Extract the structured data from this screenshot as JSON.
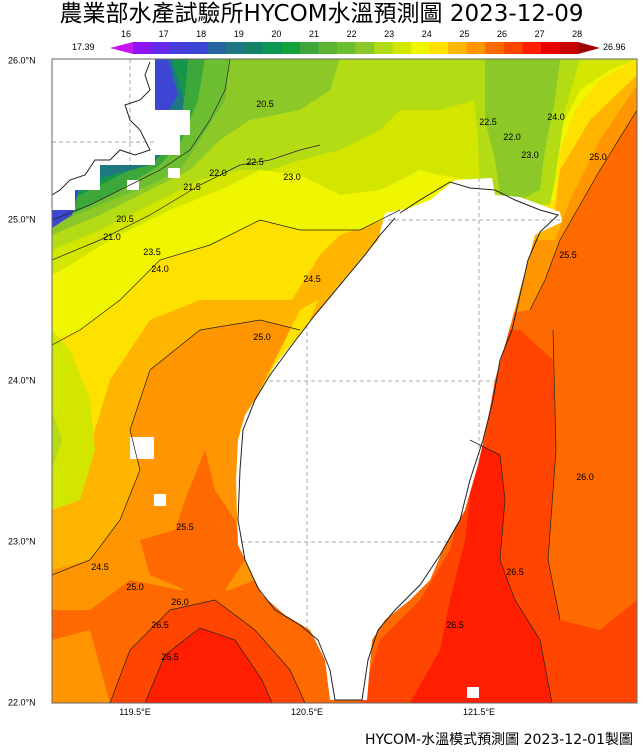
{
  "title": "農業部水產試驗所HYCOM水溫預測圖 2023-12-09",
  "footer": "HYCOM-水溫模式預測圖 2023-12-01製圖",
  "colorbar": {
    "min_label": "17.39",
    "max_label": "26.96",
    "ticks": [
      "16",
      "17",
      "18",
      "19",
      "20",
      "21",
      "22",
      "23",
      "24",
      "25",
      "26",
      "27",
      "28"
    ],
    "colors": [
      "#c814f0",
      "#8c14f5",
      "#6428f0",
      "#463cdc",
      "#3c46d2",
      "#2864a0",
      "#1e7882",
      "#148264",
      "#0a9650",
      "#14a03c",
      "#3ca83c",
      "#5ab432",
      "#6ebe32",
      "#8cc828",
      "#b4dc14",
      "#d2e600",
      "#f0f500",
      "#ffe100",
      "#ffb400",
      "#ff9500",
      "#ff6a00",
      "#ff4500",
      "#ff1e00",
      "#e60000",
      "#c80000",
      "#a00000"
    ]
  },
  "axes": {
    "lat_labels": [
      "26.0°N",
      "25.0°N",
      "24.0°N",
      "23.0°N",
      "22.0°N"
    ],
    "lon_labels": [
      "119.5°E",
      "120.5°E",
      "121.5°E"
    ]
  },
  "contour_labels": [
    "20.5",
    "22.5",
    "23.0",
    "21.5",
    "22.0",
    "20.5",
    "21.0",
    "23.5",
    "24.0",
    "24.5",
    "22.5",
    "22.0",
    "23.0",
    "24.0",
    "25.0",
    "25.5",
    "25.0",
    "25.5",
    "24.5",
    "25.0",
    "26.0",
    "26.5",
    "26.5",
    "26.0",
    "26.5",
    "26.5"
  ]
}
